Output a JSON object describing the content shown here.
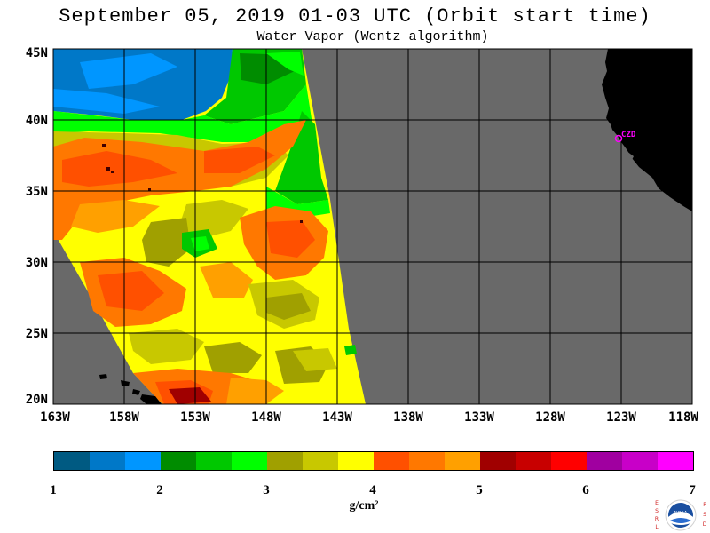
{
  "title": "September 05, 2019  01-03 UTC  (Orbit start time)",
  "subtitle": "Water Vapor (Wentz algorithm)",
  "map": {
    "lat_labels": [
      "45N",
      "40N",
      "35N",
      "30N",
      "25N",
      "20N"
    ],
    "lon_labels": [
      "163W",
      "158W",
      "153W",
      "148W",
      "143W",
      "138W",
      "133W",
      "128W",
      "123W",
      "118W"
    ],
    "lat_range": [
      20,
      45
    ],
    "lon_range": [
      -163,
      -118
    ],
    "city_label": "CZD",
    "colors": {
      "no_data": "#696969",
      "land": "#000000",
      "grid": "#000000",
      "city_marker": "#ff00ff"
    }
  },
  "colorbar": {
    "unit": "g/cm²",
    "tick_labels": [
      "1",
      "2",
      "3",
      "4",
      "5",
      "6",
      "7"
    ],
    "range": [
      1,
      7
    ],
    "colors": [
      "#005a82",
      "#0078c8",
      "#0096ff",
      "#008c00",
      "#00c800",
      "#00ff00",
      "#a0a000",
      "#c8c800",
      "#ffff00",
      "#ff5000",
      "#ff7800",
      "#ffa000",
      "#a00000",
      "#c80000",
      "#ff0000",
      "#a000a0",
      "#c800c8",
      "#ff00ff"
    ]
  },
  "logo": {
    "left_letters": [
      "E",
      "S",
      "R",
      "L"
    ],
    "right_letters": [
      "P",
      "S",
      "D"
    ],
    "center_text": "NOAA"
  }
}
